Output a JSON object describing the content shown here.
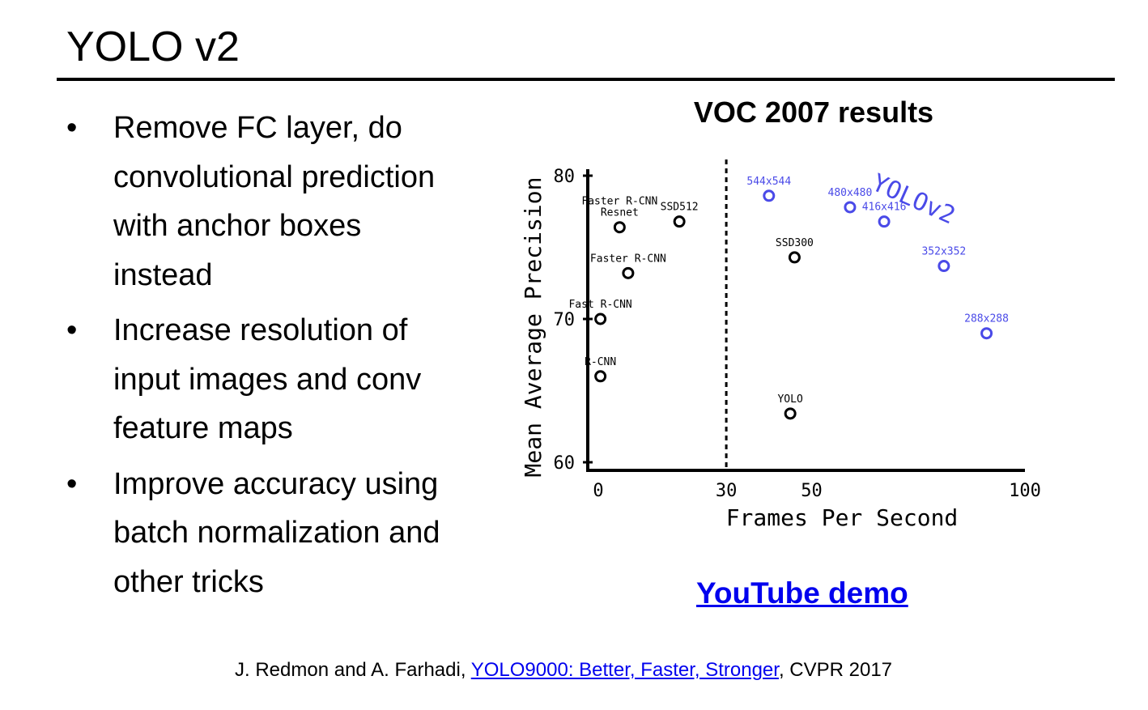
{
  "slide": {
    "title": "YOLO v2",
    "bullets": [
      [
        "Remove FC layer, do",
        "convolutional prediction",
        "with anchor boxes",
        "instead"
      ],
      [
        "Increase resolution of",
        "input images and conv",
        "feature maps"
      ],
      [
        "Improve accuracy using",
        "batch normalization and",
        "other tricks"
      ]
    ],
    "bullet_glyph": "•",
    "chart_heading": "VOC 2007 results",
    "youtube_link": "YouTube demo",
    "citation": {
      "authors": "J. Redmon and A. Farhadi, ",
      "paper_link": "YOLO9000: Better, Faster, Stronger",
      "venue": ", CVPR 2017"
    }
  },
  "colors": {
    "link": "#0000ee",
    "yolov2": "#4a4ae8",
    "text": "#000000"
  },
  "chart_data": {
    "type": "scatter",
    "xlabel": "Frames Per Second",
    "ylabel": "Mean Average Precision",
    "xlim": [
      0,
      100
    ],
    "ylim": [
      60,
      80
    ],
    "xticks": [
      0,
      30,
      50,
      100
    ],
    "yticks": [
      60,
      70,
      80
    ],
    "reference_line_x": 30,
    "series": [
      {
        "name": "",
        "color": "#000000",
        "points": [
          {
            "label": "R-CNN",
            "x": 0.5,
            "y": 66.0
          },
          {
            "label": "Fast R-CNN",
            "x": 0.5,
            "y": 70.0
          },
          {
            "label": "Faster R-CNN",
            "x": 7,
            "y": 73.2
          },
          {
            "label": "Faster R-CNN\nResnet",
            "x": 5,
            "y": 76.4
          },
          {
            "label": "SSD512",
            "x": 19,
            "y": 76.8
          },
          {
            "label": "SSD300",
            "x": 46,
            "y": 74.3
          },
          {
            "label": "YOLO",
            "x": 45,
            "y": 63.4
          }
        ]
      },
      {
        "name": "YOLOv2",
        "color": "#4a4ae8",
        "points": [
          {
            "label": "544x544",
            "x": 40,
            "y": 78.6
          },
          {
            "label": "480x480",
            "x": 59,
            "y": 77.8
          },
          {
            "label": "416x416",
            "x": 67,
            "y": 76.8
          },
          {
            "label": "352x352",
            "x": 81,
            "y": 73.7
          },
          {
            "label": "288x288",
            "x": 91,
            "y": 69.0
          }
        ]
      }
    ]
  }
}
